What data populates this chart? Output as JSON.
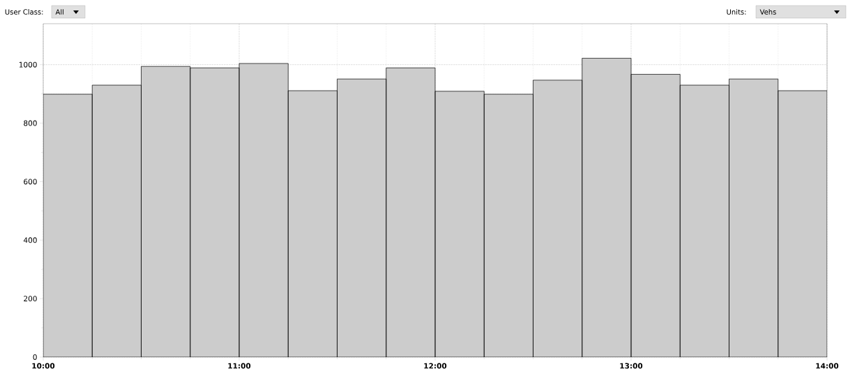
{
  "chart_data": {
    "type": "histogram",
    "bins": [
      10,
      10.25,
      10.5,
      10.75,
      11,
      11.25,
      11.5,
      11.75,
      12,
      12.25,
      12.5,
      12.75,
      13,
      13.25,
      13.5,
      13.75,
      14
    ],
    "values": [
      899,
      930,
      994,
      989,
      1004,
      911,
      951,
      989,
      909,
      899,
      947,
      1022,
      967,
      930,
      951,
      911
    ],
    "color": "#cccccc",
    "xlim": [
      10,
      14
    ],
    "xticks": [
      {
        "value": 10,
        "label": "10:00"
      },
      {
        "value": 11,
        "label": "11:00"
      },
      {
        "value": 12,
        "label": "12:00"
      },
      {
        "value": 13,
        "label": "13:00"
      },
      {
        "value": 14,
        "label": "14:00"
      }
    ],
    "ylim": [
      0,
      1140
    ],
    "yticks": [
      0,
      200,
      400,
      600,
      800,
      1000
    ],
    "grid": true,
    "annotations": [
      "User Class:",
      "All",
      "Units:",
      "Vehs"
    ]
  }
}
